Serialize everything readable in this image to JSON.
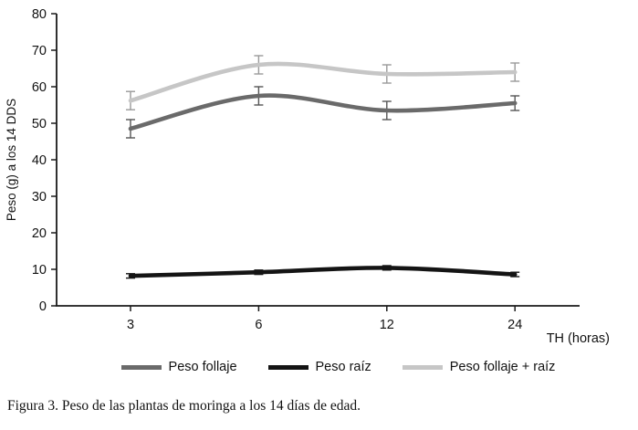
{
  "figure": {
    "caption": "Figura 3. Peso de las plantas de moringa a los 14 días de edad."
  },
  "chart_data": {
    "type": "line",
    "smoothed": true,
    "categories": [
      "3",
      "6",
      "12",
      "24"
    ],
    "series": [
      {
        "name": "Peso follaje",
        "values": [
          48.5,
          57.5,
          53.5,
          55.5
        ],
        "errors": [
          2.5,
          2.5,
          2.5,
          2.0
        ],
        "color": "#6a6a6a",
        "error_color": "#555555"
      },
      {
        "name": "Peso raíz",
        "values": [
          8.2,
          9.2,
          10.4,
          8.6
        ],
        "errors": [
          0.6,
          0.6,
          0.6,
          0.6
        ],
        "color": "#141414",
        "error_color": "#141414"
      },
      {
        "name": "Peso follaje + raíz",
        "values": [
          56.2,
          66.0,
          63.5,
          64.0
        ],
        "errors": [
          2.5,
          2.5,
          2.5,
          2.5
        ],
        "color": "#c6c6c6",
        "error_color": "#9a9a9a"
      }
    ],
    "title": "",
    "xlabel": "TH (horas)",
    "ylabel": "Peso (g) a los 14 DDS",
    "ylim": [
      0,
      80
    ],
    "ytick_step": 10,
    "grid": false,
    "legend_position": "bottom",
    "axis_color": "#1a1a1a",
    "tick_label_color": "#111111"
  }
}
